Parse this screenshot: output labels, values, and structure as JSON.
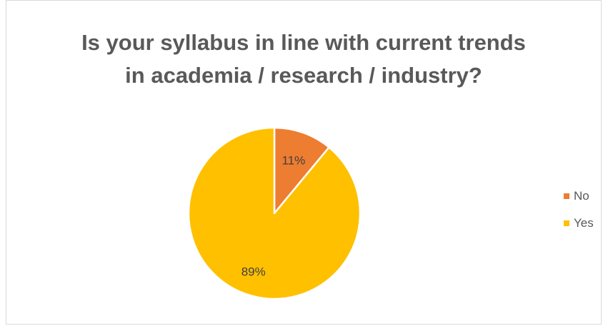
{
  "chart_data": {
    "type": "pie",
    "title": "Is your syllabus in line with current trends in academia / research / industry?",
    "title_lines": [
      "Is your syllabus in line with current trends",
      "in academia / research / industry?"
    ],
    "categories": [
      "No",
      "Yes"
    ],
    "values": [
      11,
      89
    ],
    "data_labels": [
      "11%",
      "89%"
    ],
    "colors": [
      "#ed7d31",
      "#ffc000"
    ],
    "legend": {
      "position": "right",
      "entries": [
        "No",
        "Yes"
      ]
    }
  }
}
